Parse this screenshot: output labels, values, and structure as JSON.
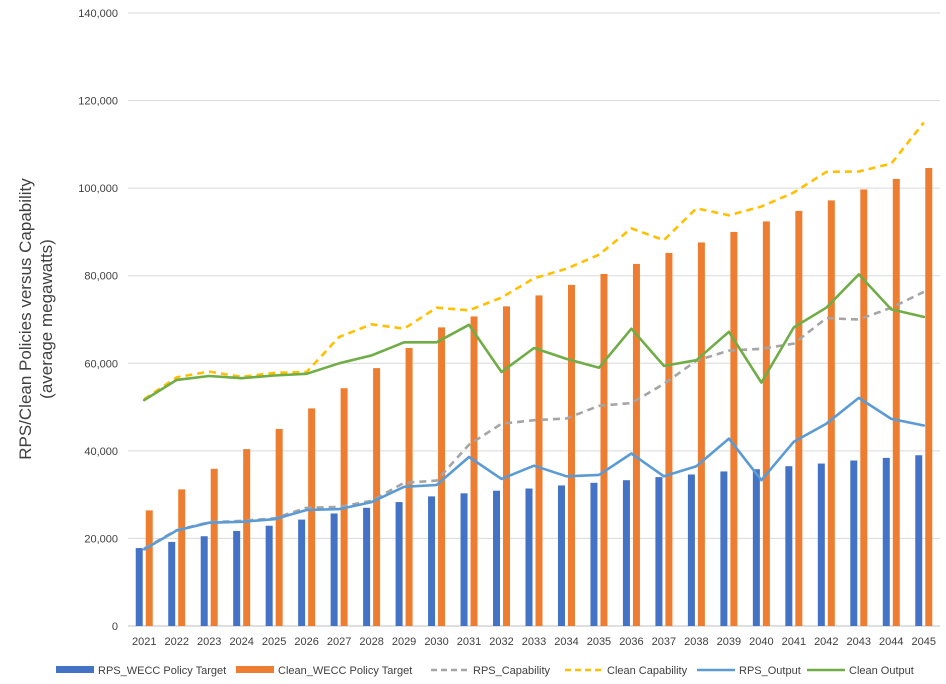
{
  "chart_data": {
    "type": "bar",
    "title": "",
    "xlabel": "",
    "ylabel": "RPS/Clean Policies versus Capability",
    "ylabel_line2": "(average megawatts)",
    "ylim": [
      0,
      140000
    ],
    "yticks": [
      0,
      20000,
      40000,
      60000,
      80000,
      100000,
      120000,
      140000
    ],
    "ytick_labels": [
      "0",
      "20,000",
      "40,000",
      "60,000",
      "80,000",
      "100,000",
      "120,000",
      "140,000"
    ],
    "grid": "horizontal",
    "legend_position": "bottom",
    "categories": [
      "2021",
      "2022",
      "2023",
      "2024",
      "2025",
      "2026",
      "2027",
      "2028",
      "2029",
      "2030",
      "2031",
      "2032",
      "2033",
      "2034",
      "2035",
      "2036",
      "2037",
      "2038",
      "2039",
      "2040",
      "2041",
      "2042",
      "2043",
      "2044",
      "2045"
    ],
    "bar_series": [
      {
        "name": "RPS_WECC Policy Target",
        "color": "#4472C4",
        "values": [
          17800,
          19200,
          20500,
          21700,
          22900,
          24300,
          25700,
          27000,
          28300,
          29600,
          30300,
          30900,
          31400,
          32100,
          32700,
          33300,
          34000,
          34600,
          35300,
          35800,
          36500,
          37100,
          37800,
          38400,
          39000
        ]
      },
      {
        "name": "Clean_WECC Policy Target",
        "color": "#ED7D31",
        "values": [
          26400,
          31200,
          35900,
          40400,
          45000,
          49700,
          54300,
          58900,
          63500,
          68200,
          70700,
          73000,
          75500,
          77900,
          80400,
          82700,
          85200,
          87600,
          90000,
          92400,
          94800,
          97200,
          99700,
          102100,
          104600
        ]
      }
    ],
    "line_series": [
      {
        "name": "RPS_Capability",
        "color": "#A5A5A5",
        "dash": "dashed",
        "values": [
          17700,
          21900,
          23700,
          24000,
          24600,
          27000,
          27200,
          28600,
          32700,
          33200,
          41400,
          46200,
          47000,
          47400,
          50300,
          50900,
          55300,
          60600,
          62900,
          63300,
          64500,
          70300,
          70000,
          72700,
          76300
        ]
      },
      {
        "name": "Clean Capability",
        "color": "#FFC000",
        "dash": "dashed",
        "values": [
          51800,
          56800,
          58100,
          56900,
          57800,
          58000,
          66000,
          68900,
          67900,
          72700,
          72100,
          75000,
          79400,
          81600,
          84800,
          90800,
          88100,
          95400,
          93800,
          95800,
          99000,
          103700,
          103800,
          105600,
          115000
        ]
      },
      {
        "name": "RPS_Output",
        "color": "#5B9BD5",
        "dash": "solid",
        "values": [
          17500,
          21800,
          23600,
          23800,
          24400,
          26500,
          26700,
          28300,
          31800,
          32200,
          38600,
          33600,
          36600,
          34200,
          34500,
          39400,
          34200,
          36500,
          42800,
          33300,
          42100,
          46200,
          52100,
          47300,
          45800
        ]
      },
      {
        "name": "Clean Output",
        "color": "#70AD47",
        "dash": "solid",
        "values": [
          51600,
          56200,
          57100,
          56600,
          57200,
          57600,
          60000,
          61800,
          64800,
          64800,
          68800,
          58000,
          63500,
          61000,
          59000,
          67900,
          59400,
          60700,
          67200,
          55600,
          68200,
          72700,
          80300,
          72300,
          70600
        ]
      }
    ],
    "legend": [
      {
        "name": "RPS_WECC Policy Target",
        "kind": "bar",
        "color": "#4472C4"
      },
      {
        "name": "Clean_WECC Policy Target",
        "kind": "bar",
        "color": "#ED7D31"
      },
      {
        "name": "RPS_Capability",
        "kind": "line-dashed",
        "color": "#A5A5A5"
      },
      {
        "name": "Clean Capability",
        "kind": "line-dashed",
        "color": "#FFC000"
      },
      {
        "name": "RPS_Output",
        "kind": "line",
        "color": "#5B9BD5"
      },
      {
        "name": "Clean Output",
        "kind": "line",
        "color": "#70AD47"
      }
    ]
  }
}
